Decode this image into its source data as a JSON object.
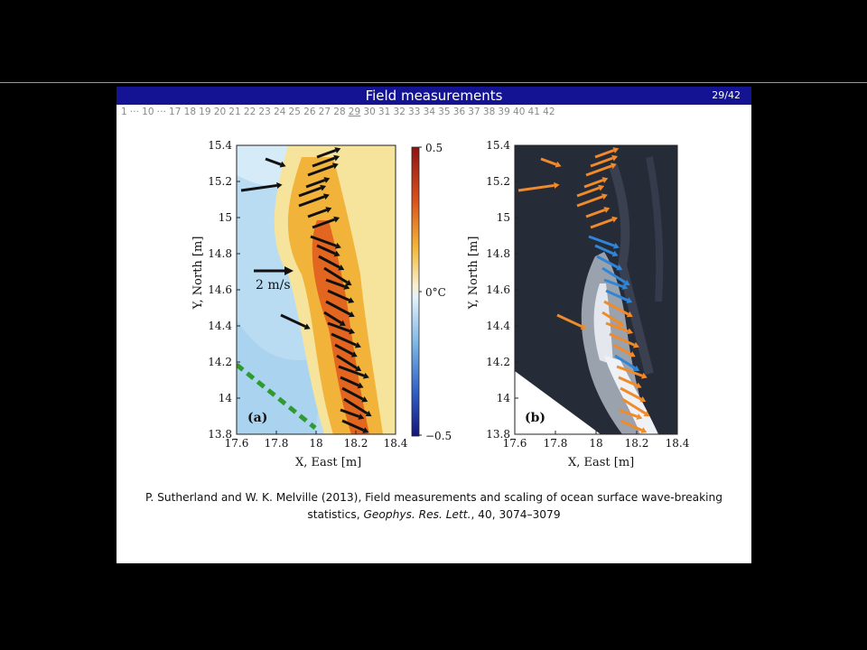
{
  "slide": {
    "title": "Field measurements",
    "page": "29/42",
    "nav_items": [
      "1",
      "···",
      "10",
      "···",
      "17",
      "18",
      "19",
      "20",
      "21",
      "22",
      "23",
      "24",
      "25",
      "26",
      "27",
      "28",
      "29",
      "30",
      "31",
      "32",
      "33",
      "34",
      "35",
      "36",
      "37",
      "38",
      "39",
      "40",
      "41",
      "42"
    ],
    "current_nav": "29"
  },
  "figure": {
    "panel_a": {
      "label": "(a)",
      "scale_label": "2 m/s",
      "xlabel": "X, East [m]",
      "ylabel": "Y, North [m]",
      "xticks": [
        "17.6",
        "17.8",
        "18",
        "18.2",
        "18.4"
      ],
      "yticks": [
        "15.4",
        "15.2",
        "15",
        "14.8",
        "14.6",
        "14.4",
        "14.2",
        "14",
        "13.8"
      ],
      "colorbar_ticks": [
        "0.5",
        "0°C",
        "−0.5"
      ]
    },
    "panel_b": {
      "label": "(b)",
      "xlabel": "X, East [m]",
      "ylabel": "Y, North [m]",
      "xticks": [
        "17.6",
        "17.8",
        "18",
        "18.2",
        "18.4"
      ],
      "yticks": [
        "15.4",
        "15.2",
        "15",
        "14.8",
        "14.6",
        "14.4",
        "14.2",
        "14",
        "13.8"
      ]
    },
    "colors": {
      "arrow_a": "#111111",
      "arrow_b_orange": "#f08a2a",
      "arrow_b_blue": "#2f86d9",
      "dashed_line": "#2f9a2f",
      "water_b": "#262b38"
    }
  },
  "caption": {
    "authors": "P. Sutherland and W. K. Melville (2013), Field measurements and scaling of ocean surface wave-breaking statistics, ",
    "journal": "Geophys. Res. Lett.",
    "details": ", 40, 3074–3079"
  }
}
